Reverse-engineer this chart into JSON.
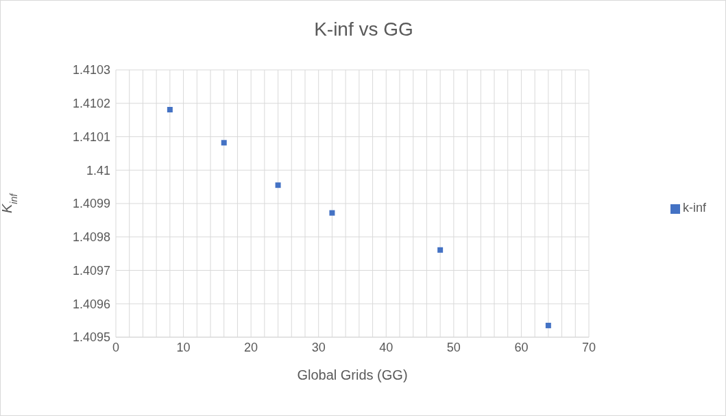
{
  "chart_data": {
    "type": "scatter",
    "title": "K-inf vs GG",
    "xlabel": "Global Grids (GG)",
    "ylabel": "K$_{inf}$",
    "x": [
      8,
      16,
      24,
      32,
      48,
      64
    ],
    "series": [
      {
        "name": "k-inf",
        "color": "#4472c4",
        "values": [
          1.410181,
          1.410082,
          1.409955,
          1.409872,
          1.409761,
          1.409535
        ]
      }
    ],
    "xlim": [
      0,
      70
    ],
    "xticks": [
      0,
      {
        "value": 2,
        "label": null
      },
      {
        "value": 4,
        "label": null
      },
      {
        "value": 6,
        "label": null
      },
      {
        "value": 8,
        "label": null
      },
      10,
      {
        "value": 12,
        "label": null
      },
      {
        "value": 14,
        "label": null
      },
      {
        "value": 16,
        "label": null
      },
      {
        "value": 18,
        "label": null
      },
      20,
      {
        "value": 22,
        "label": null
      },
      {
        "value": 24,
        "label": null
      },
      {
        "value": 26,
        "label": null
      },
      {
        "value": 28,
        "label": null
      },
      30,
      {
        "value": 32,
        "label": null
      },
      {
        "value": 34,
        "label": null
      },
      {
        "value": 36,
        "label": null
      },
      {
        "value": 38,
        "label": null
      },
      40,
      {
        "value": 42,
        "label": null
      },
      {
        "value": 44,
        "label": null
      },
      {
        "value": 46,
        "label": null
      },
      {
        "value": 48,
        "label": null
      },
      50,
      {
        "value": 52,
        "label": null
      },
      {
        "value": 54,
        "label": null
      },
      {
        "value": 56,
        "label": null
      },
      {
        "value": 58,
        "label": null
      },
      60,
      {
        "value": 62,
        "label": null
      },
      {
        "value": 64,
        "label": null
      },
      {
        "value": 66,
        "label": null
      },
      {
        "value": 68,
        "label": null
      },
      70
    ],
    "ylim": [
      1.4095,
      1.4103
    ],
    "yticks": [
      1.4095,
      1.4096,
      1.4097,
      1.4098,
      1.4099,
      1.41,
      1.4101,
      1.4102,
      1.4103
    ],
    "grid": true,
    "legend": "right",
    "marker": "square"
  }
}
